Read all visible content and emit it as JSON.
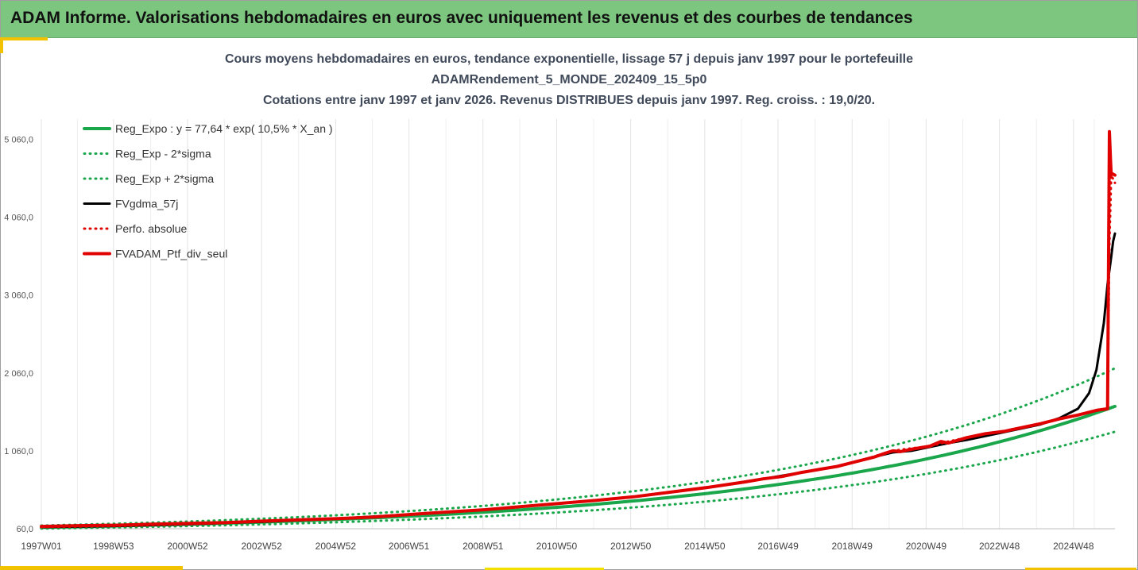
{
  "header": {
    "title": "ADAM Informe. Valorisations hebdomadaires en euros avec uniquement les revenus et des courbes de tendances"
  },
  "colors": {
    "header_bg": "#7dc67f",
    "reg_expo": "#1aa64b",
    "gdma": "#000000",
    "ptf": "#e00000"
  },
  "chart_data": {
    "type": "line",
    "title_lines": [
      "Cours moyens hebdomadaires  en euros, tendance exponentielle, lissage 57 j depuis janv 1997 pour le portefeuille",
      "ADAMRendement_5_MONDE_202409_15_5p0",
      "Cotations entre janv 1997 et janv 2026. Revenus DISTRIBUES depuis janv 1997. Reg. croiss. : 19,0/20."
    ],
    "x_unit": "year",
    "x_range": [
      1997.0,
      2026.0
    ],
    "ylim": [
      60,
      5500
    ],
    "y_ticks": [
      60,
      1060,
      2060,
      3060,
      4060,
      5060
    ],
    "y_tick_labels": [
      "60,0",
      "1 060,0",
      "2 060,0",
      "3 060,0",
      "4 060,0",
      "5 060,0"
    ],
    "x_ticks": [
      {
        "label": "1997W01",
        "x": 1997.0
      },
      {
        "label": "1998W53",
        "x": 1998.95
      },
      {
        "label": "2000W52",
        "x": 2000.95
      },
      {
        "label": "2002W52",
        "x": 2002.95
      },
      {
        "label": "2004W52",
        "x": 2004.95
      },
      {
        "label": "2006W51",
        "x": 2006.93
      },
      {
        "label": "2008W51",
        "x": 2008.93
      },
      {
        "label": "2010W50",
        "x": 2010.92
      },
      {
        "label": "2012W50",
        "x": 2012.92
      },
      {
        "label": "2014W50",
        "x": 2014.92
      },
      {
        "label": "2016W49",
        "x": 2016.9
      },
      {
        "label": "2018W49",
        "x": 2018.9
      },
      {
        "label": "2020W49",
        "x": 2020.9
      },
      {
        "label": "2022W48",
        "x": 2022.88
      },
      {
        "label": "2024W48",
        "x": 2024.88
      }
    ],
    "grid": "vertical",
    "legend_position": "top-left",
    "regression": {
      "a": 77.64,
      "rate": 0.105,
      "sigma_factor_low": 0.8,
      "sigma_factor_high": 1.3
    },
    "series": [
      {
        "name": "Reg_Expo : y = 77,64 * exp( 10,5% *  X_an )",
        "key": "reg_expo",
        "color": "#1aa64b",
        "style": "solid",
        "width": 4
      },
      {
        "name": "Reg_Exp - 2*sigma",
        "key": "reg_low",
        "color": "#1aa64b",
        "style": "dotted",
        "width": 3
      },
      {
        "name": "Reg_Exp + 2*sigma",
        "key": "reg_high",
        "color": "#1aa64b",
        "style": "dotted",
        "width": 3
      },
      {
        "name": "FVgdma_57j",
        "key": "gdma",
        "color": "#000000",
        "style": "solid",
        "width": 3,
        "x": [
          1997.0,
          1999.0,
          2001.0,
          2003.0,
          2005.0,
          2007.0,
          2009.0,
          2011.0,
          2013.0,
          2015.0,
          2016.5,
          2017.5,
          2018.5,
          2019.3,
          2020.0,
          2020.5,
          2021.0,
          2021.5,
          2022.0,
          2022.5,
          2023.0,
          2023.5,
          2024.0,
          2024.5,
          2025.0,
          2025.3,
          2025.5,
          2025.7,
          2025.8,
          2025.9,
          2025.95,
          2026.0
        ],
        "y": [
          80,
          95,
          118,
          150,
          190,
          245,
          305,
          385,
          470,
          590,
          700,
          780,
          860,
          960,
          1040,
          1060,
          1110,
          1160,
          1200,
          1250,
          1300,
          1350,
          1400,
          1480,
          1600,
          1800,
          2100,
          2700,
          3200,
          3550,
          3750,
          3850
        ]
      },
      {
        "name": "Perfo. absolue",
        "key": "perfo",
        "color": "#e00000",
        "style": "dotted",
        "width": 3,
        "x": [
          1997.0,
          1999.0,
          2001.0,
          2003.0,
          2005.0,
          2007.0,
          2009.0,
          2011.0,
          2013.0,
          2015.0,
          2016.5,
          2017.5,
          2018.5,
          2019.3,
          2020.0,
          2020.3,
          2021.0,
          2021.5,
          2022.0,
          2022.5,
          2023.0,
          2023.5,
          2024.0,
          2024.5,
          2025.0,
          2025.5,
          2025.8,
          2025.85,
          2025.9,
          2026.0
        ],
        "y": [
          80,
          95,
          118,
          150,
          190,
          245,
          305,
          385,
          470,
          590,
          700,
          780,
          860,
          960,
          1060,
          1080,
          1120,
          1180,
          1230,
          1280,
          1310,
          1360,
          1410,
          1470,
          1520,
          1580,
          1600,
          3700,
          4600,
          4500
        ]
      },
      {
        "name": "FVADAM_Ptf_div_seul",
        "key": "ptf",
        "color": "#e00000",
        "style": "solid",
        "width": 4,
        "x": [
          1997.0,
          1998.0,
          1999.0,
          2000.0,
          2001.0,
          2002.0,
          2003.0,
          2004.0,
          2005.0,
          2006.0,
          2007.0,
          2008.0,
          2009.0,
          2010.0,
          2011.0,
          2012.0,
          2013.0,
          2014.0,
          2015.0,
          2016.0,
          2016.5,
          2017.0,
          2017.5,
          2018.0,
          2018.5,
          2019.0,
          2019.5,
          2019.8,
          2020.0,
          2020.2,
          2020.5,
          2021.0,
          2021.3,
          2021.5,
          2022.0,
          2022.5,
          2023.0,
          2023.5,
          2024.0,
          2024.5,
          2025.0,
          2025.5,
          2025.8,
          2025.85,
          2025.88,
          2025.9,
          2025.92,
          2026.0
        ],
        "y": [
          90,
          100,
          105,
          118,
          128,
          140,
          158,
          175,
          190,
          210,
          245,
          275,
          305,
          345,
          385,
          425,
          470,
          530,
          590,
          660,
          700,
          730,
          780,
          820,
          860,
          920,
          980,
          1030,
          1060,
          1050,
          1080,
          1120,
          1180,
          1160,
          1230,
          1280,
          1310,
          1360,
          1410,
          1470,
          1520,
          1580,
          1600,
          5160,
          4800,
          4600,
          4620,
          4600
        ]
      }
    ]
  }
}
